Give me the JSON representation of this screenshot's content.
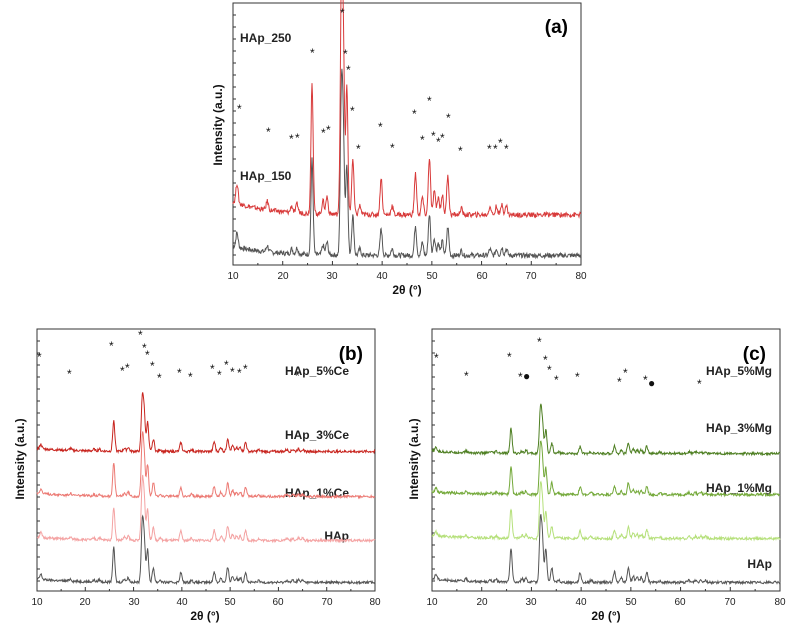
{
  "figure_panels": [
    {
      "key": "a",
      "panel_tag": "(a)",
      "xlabel": "2θ (°)",
      "ylabel": "Intensity (a.u.)",
      "x_ticks": [
        "10",
        "20",
        "30",
        "40",
        "50",
        "60",
        "70",
        "80"
      ],
      "series": [
        {
          "name": "HAp_150",
          "color": "#555555"
        },
        {
          "name": "HAp_250",
          "color": "#d83a3a"
        }
      ],
      "markers": [
        "*"
      ]
    },
    {
      "key": "b",
      "panel_tag": "(b)",
      "xlabel": "2θ (°)",
      "ylabel": "Intensity (a.u.)",
      "x_ticks": [
        "10",
        "20",
        "30",
        "40",
        "50",
        "60",
        "70",
        "80"
      ],
      "series": [
        {
          "name": "HAp",
          "color": "#555555"
        },
        {
          "name": "HAp_1%Ce",
          "color": "#f4a3a3"
        },
        {
          "name": "HAp_3%Ce",
          "color": "#ec7a74"
        },
        {
          "name": "HAp_5%Ce",
          "color": "#c8251f"
        }
      ],
      "markers": [
        "*"
      ]
    },
    {
      "key": "c",
      "panel_tag": "(c)",
      "xlabel": "2θ (°)",
      "ylabel": "Intensity (a.u.)",
      "x_ticks": [
        "10",
        "20",
        "30",
        "40",
        "50",
        "60",
        "70",
        "80"
      ],
      "series": [
        {
          "name": "HAp",
          "color": "#555555"
        },
        {
          "name": "HAp_1%Mg",
          "color": "#b5e07a"
        },
        {
          "name": "HAp_3%Mg",
          "color": "#74a93a"
        },
        {
          "name": "HAp_5%Mg",
          "color": "#4e7f22"
        }
      ],
      "markers": [
        "*",
        "●"
      ]
    }
  ],
  "chart_data": [
    {
      "type": "line",
      "title": "(a)",
      "xlabel": "2θ (°)",
      "ylabel": "Intensity (a.u.)",
      "xlim": [
        10,
        80
      ],
      "y_units": "arbitrary",
      "baseline": 1,
      "peaks": [
        [
          10.8,
          9
        ],
        [
          16.9,
          4
        ],
        [
          21.8,
          3
        ],
        [
          22.9,
          4
        ],
        [
          25.9,
          60
        ],
        [
          28.1,
          6
        ],
        [
          28.9,
          8
        ],
        [
          31.8,
          100
        ],
        [
          32.2,
          70
        ],
        [
          32.9,
          58
        ],
        [
          34.1,
          25
        ],
        [
          35.5,
          4
        ],
        [
          39.8,
          17
        ],
        [
          42.0,
          4
        ],
        [
          46.7,
          19
        ],
        [
          48.1,
          8
        ],
        [
          49.5,
          26
        ],
        [
          50.5,
          11
        ],
        [
          51.3,
          8
        ],
        [
          52.1,
          9
        ],
        [
          53.2,
          18
        ],
        [
          55.9,
          3
        ],
        [
          61.7,
          4
        ],
        [
          63.0,
          4
        ],
        [
          64.1,
          5
        ],
        [
          65.0,
          4
        ]
      ],
      "series": [
        {
          "name": "HAp_150",
          "scale": 0.72,
          "offset": 0
        },
        {
          "name": "HAp_250",
          "scale": 1.0,
          "offset": 40
        }
      ],
      "annotations": [
        "*"
      ]
    },
    {
      "type": "line",
      "title": "(b)",
      "xlabel": "2θ (°)",
      "ylabel": "Intensity (a.u.)",
      "xlim": [
        10,
        80
      ],
      "y_units": "arbitrary",
      "baseline": 1,
      "peaks": [
        [
          10.8,
          9
        ],
        [
          16.9,
          4
        ],
        [
          21.8,
          3
        ],
        [
          22.9,
          4
        ],
        [
          25.9,
          60
        ],
        [
          28.1,
          6
        ],
        [
          28.9,
          8
        ],
        [
          31.8,
          100
        ],
        [
          32.2,
          70
        ],
        [
          32.9,
          58
        ],
        [
          34.1,
          25
        ],
        [
          35.5,
          4
        ],
        [
          39.8,
          17
        ],
        [
          42.0,
          4
        ],
        [
          46.7,
          19
        ],
        [
          48.1,
          8
        ],
        [
          49.5,
          26
        ],
        [
          50.5,
          11
        ],
        [
          51.3,
          8
        ],
        [
          52.1,
          9
        ],
        [
          53.2,
          18
        ],
        [
          55.9,
          3
        ],
        [
          61.7,
          4
        ],
        [
          63.0,
          4
        ],
        [
          64.1,
          5
        ],
        [
          65.0,
          4
        ]
      ],
      "series": [
        {
          "name": "HAp",
          "scale": 0.52,
          "offset": 0
        },
        {
          "name": "HAp_1%Ce",
          "scale": 0.5,
          "offset": 42
        },
        {
          "name": "HAp_3%Ce",
          "scale": 0.5,
          "offset": 86
        },
        {
          "name": "HAp_5%Ce",
          "scale": 0.46,
          "offset": 131
        }
      ],
      "annotations": [
        "*"
      ]
    },
    {
      "type": "line",
      "title": "(c)",
      "xlabel": "2θ (°)",
      "ylabel": "Intensity (a.u.)",
      "xlim": [
        10,
        80
      ],
      "y_units": "arbitrary",
      "baseline": 1,
      "peaks": [
        [
          10.8,
          9
        ],
        [
          16.9,
          4
        ],
        [
          21.8,
          3
        ],
        [
          22.9,
          4
        ],
        [
          25.9,
          60
        ],
        [
          28.1,
          6
        ],
        [
          28.9,
          8
        ],
        [
          31.8,
          100
        ],
        [
          32.2,
          70
        ],
        [
          32.9,
          58
        ],
        [
          34.1,
          25
        ],
        [
          35.5,
          4
        ],
        [
          39.8,
          17
        ],
        [
          42.0,
          4
        ],
        [
          46.7,
          19
        ],
        [
          48.1,
          8
        ],
        [
          49.5,
          26
        ],
        [
          50.5,
          11
        ],
        [
          51.3,
          8
        ],
        [
          52.1,
          9
        ],
        [
          53.2,
          18
        ],
        [
          55.9,
          3
        ],
        [
          61.7,
          4
        ],
        [
          63.0,
          4
        ],
        [
          64.1,
          5
        ],
        [
          65.0,
          4
        ]
      ],
      "series": [
        {
          "name": "HAp",
          "scale": 0.5,
          "offset": 0
        },
        {
          "name": "HAp_1%Mg",
          "scale": 0.42,
          "offset": 44
        },
        {
          "name": "HAp_3%Mg",
          "scale": 0.4,
          "offset": 88
        },
        {
          "name": "HAp_5%Mg",
          "scale": 0.36,
          "offset": 129
        }
      ],
      "annotations": [
        "*",
        "●"
      ]
    }
  ]
}
